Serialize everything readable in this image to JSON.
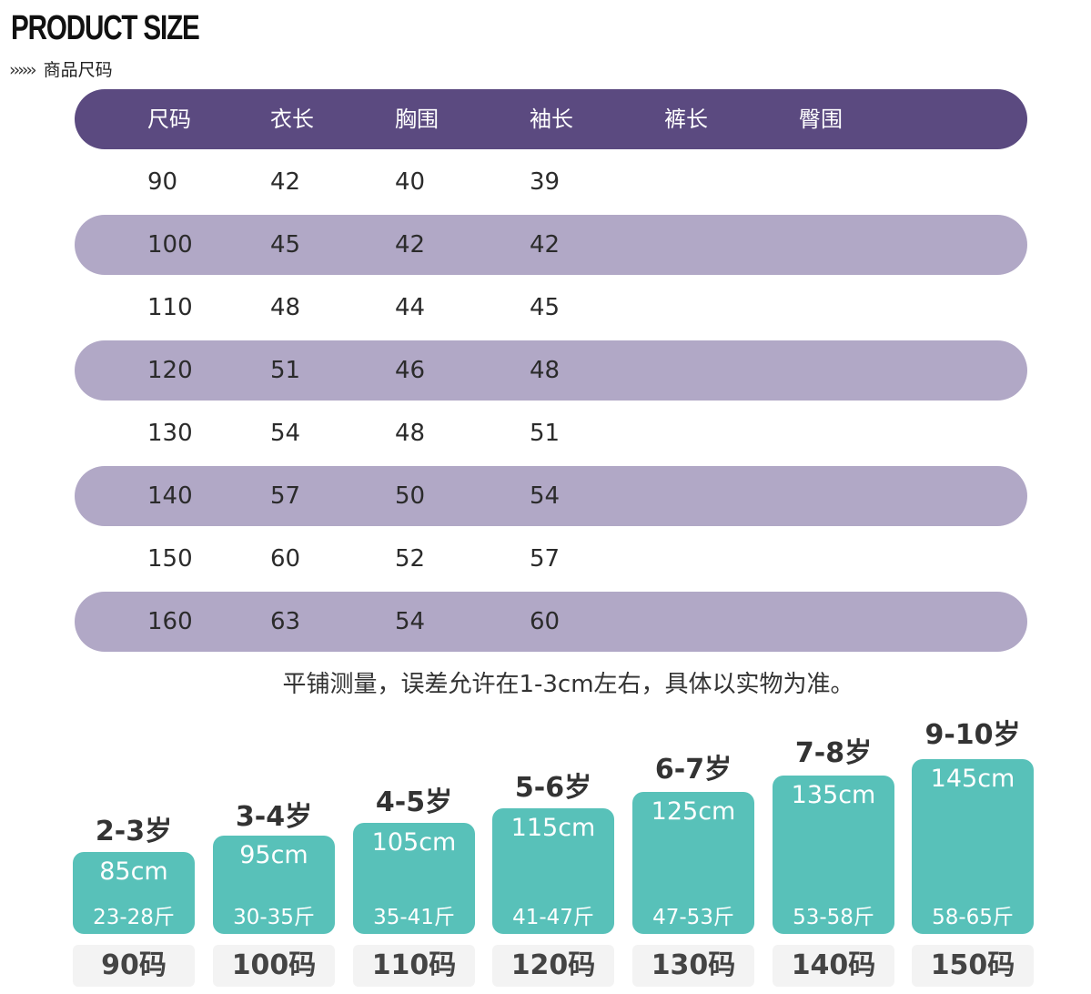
{
  "header": {
    "title": "PRODUCT SIZE",
    "arrows": "››››››",
    "subtitle": "商品尺码"
  },
  "table": {
    "columns": [
      "尺码",
      "衣长",
      "胸围",
      "袖长",
      "裤长",
      "臀围"
    ],
    "rows": [
      [
        "90",
        "42",
        "40",
        "39",
        "",
        ""
      ],
      [
        "100",
        "45",
        "42",
        "42",
        "",
        ""
      ],
      [
        "110",
        "48",
        "44",
        "45",
        "",
        ""
      ],
      [
        "120",
        "51",
        "46",
        "48",
        "",
        ""
      ],
      [
        "130",
        "54",
        "48",
        "51",
        "",
        ""
      ],
      [
        "140",
        "57",
        "50",
        "54",
        "",
        ""
      ],
      [
        "150",
        "60",
        "52",
        "57",
        "",
        ""
      ],
      [
        "160",
        "63",
        "54",
        "60",
        "",
        ""
      ]
    ]
  },
  "note": "平铺测量，误差允许在1-3cm左右，具体以实物为准。",
  "guide": [
    {
      "age": "2-3岁",
      "height": "85cm",
      "weight": "23-28斤",
      "size": "90码"
    },
    {
      "age": "3-4岁",
      "height": "95cm",
      "weight": "30-35斤",
      "size": "100码"
    },
    {
      "age": "4-5岁",
      "height": "105cm",
      "weight": "35-41斤",
      "size": "110码"
    },
    {
      "age": "5-6岁",
      "height": "115cm",
      "weight": "41-47斤",
      "size": "120码"
    },
    {
      "age": "6-7岁",
      "height": "125cm",
      "weight": "47-53斤",
      "size": "130码"
    },
    {
      "age": "7-8岁",
      "height": "135cm",
      "weight": "53-58斤",
      "size": "140码"
    },
    {
      "age": "9-10岁",
      "height": "145cm",
      "weight": "58-65斤",
      "size": "150码"
    }
  ],
  "colors": {
    "header_row": "#5b4a80",
    "shaded_row": "#b1a8c6",
    "guide_box": "#58c1b9"
  }
}
